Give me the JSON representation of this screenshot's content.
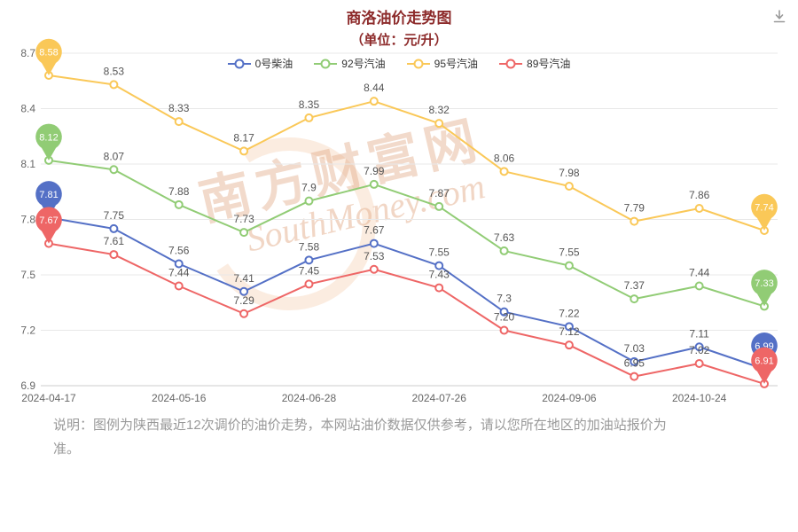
{
  "header": {
    "title": "商洛油价走势图",
    "subtitle": "（单位：元/升）"
  },
  "toolbox": {
    "icon": "download-icon"
  },
  "watermark": {
    "cn": "南方财富网",
    "en": "SouthMoney.com"
  },
  "footer": {
    "note": "说明：图例为陕西最近12次调价的油价走势，本网站油价数据仅供参考，请以您所在地区的加油站报价为准。"
  },
  "colors": {
    "title": "#8d2b2b",
    "axis_text": "#666666",
    "point_label": "#555555",
    "grid_line": "#e8e8e8",
    "axis_line": "#cccccc",
    "icon": "#999999"
  },
  "chart_data": {
    "type": "line",
    "title": "商洛油价走势图",
    "subtitle": "（单位：元/升）",
    "xlabel": "",
    "ylabel": "",
    "ylim": [
      6.9,
      8.7
    ],
    "y_step": 0.3,
    "n_points": 12,
    "grid": true,
    "legend_position": "top",
    "endpoint_marker": "pin",
    "x_tick_labels": [
      "2024-04-17",
      "2024-05-16",
      "2024-06-28",
      "2024-07-26",
      "2024-09-06",
      "2024-10-24"
    ],
    "x_tick_indices": [
      0,
      2,
      4,
      6,
      8,
      10
    ],
    "series": [
      {
        "name": "0号柴油",
        "color": "#5470c6",
        "values": [
          7.81,
          7.75,
          7.56,
          7.41,
          7.58,
          7.67,
          7.55,
          7.3,
          7.22,
          7.03,
          7.11,
          6.99
        ],
        "labels": [
          "7.81",
          "7.75",
          "7.56",
          "7.41",
          "7.58",
          "7.67",
          "7.55",
          "7.3",
          "7.22",
          "7.03",
          "7.11",
          "6.99"
        ]
      },
      {
        "name": "92号汽油",
        "color": "#91cc75",
        "values": [
          8.12,
          8.07,
          7.88,
          7.73,
          7.9,
          7.99,
          7.87,
          7.63,
          7.55,
          7.37,
          7.44,
          7.33
        ],
        "labels": [
          "8.12",
          "8.07",
          "7.88",
          "7.73",
          "7.9",
          "7.99",
          "7.87",
          "7.63",
          "7.55",
          "7.37",
          "7.44",
          "7.33"
        ]
      },
      {
        "name": "95号汽油",
        "color": "#fac858",
        "values": [
          8.58,
          8.53,
          8.33,
          8.17,
          8.35,
          8.44,
          8.32,
          8.06,
          7.98,
          7.79,
          7.86,
          7.74
        ],
        "labels": [
          "8.58",
          "8.53",
          "8.33",
          "8.17",
          "8.35",
          "8.44",
          "8.32",
          "8.06",
          "7.98",
          "7.79",
          "7.86",
          "7.74"
        ]
      },
      {
        "name": "89号汽油",
        "color": "#ee6666",
        "values": [
          7.67,
          7.61,
          7.44,
          7.29,
          7.45,
          7.53,
          7.43,
          7.2,
          7.12,
          6.95,
          7.02,
          6.91
        ],
        "labels": [
          "7.67",
          "7.61",
          "7.44",
          "7.29",
          "7.45",
          "7.53",
          "7.43",
          "7.20",
          "7.12",
          "6.95",
          "7.02",
          "6.91"
        ]
      }
    ]
  }
}
